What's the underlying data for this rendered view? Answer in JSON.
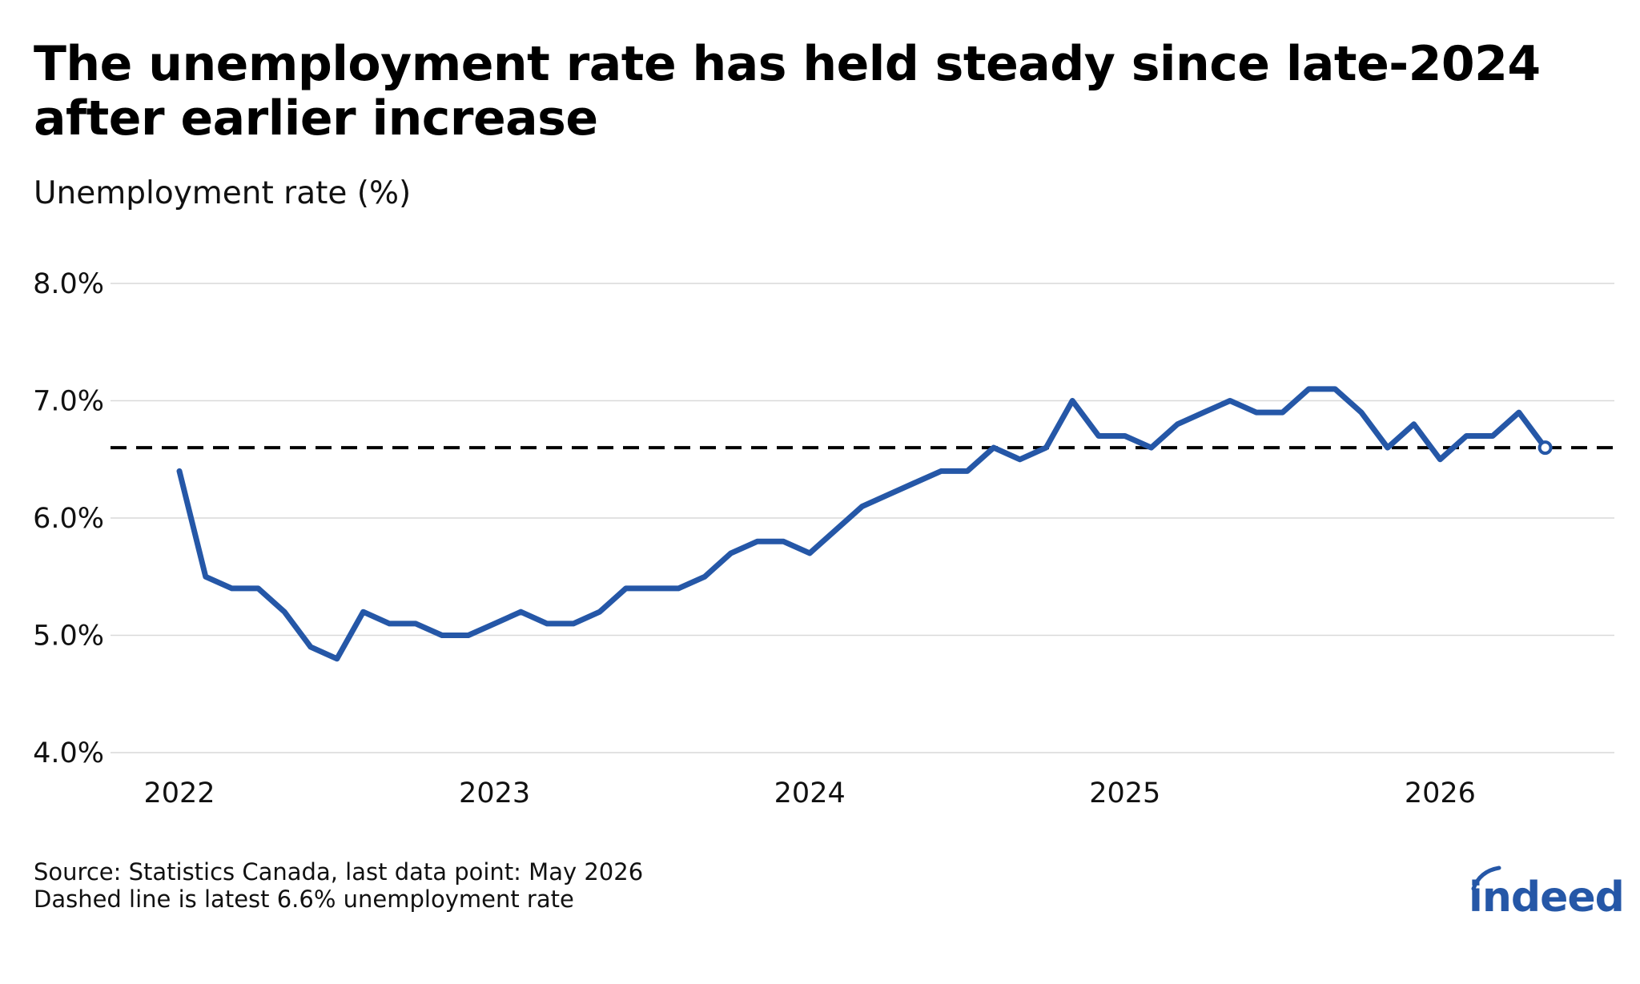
{
  "header": {
    "title": "The unemployment rate has held steady since late-2024 after earlier increase",
    "subtitle": "Unemployment rate (%)"
  },
  "footer": {
    "source": "Source: Statistics Canada, last data point: May 2026",
    "note": "Dashed line is latest 6.6% unemployment rate"
  },
  "logo": {
    "text": "indeed",
    "color": "#2557a7"
  },
  "chart_data": {
    "type": "line",
    "title": "The unemployment rate has held steady since late-2024 after earlier increase",
    "ylabel": "Unemployment rate (%)",
    "xlabel": "",
    "x_start": "2022-01",
    "x_end": "2026-05",
    "x": [
      "2022-01",
      "2022-02",
      "2022-03",
      "2022-04",
      "2022-05",
      "2022-06",
      "2022-07",
      "2022-08",
      "2022-09",
      "2022-10",
      "2022-11",
      "2022-12",
      "2023-01",
      "2023-02",
      "2023-03",
      "2023-04",
      "2023-05",
      "2023-06",
      "2023-07",
      "2023-08",
      "2023-09",
      "2023-10",
      "2023-11",
      "2023-12",
      "2024-01",
      "2024-02",
      "2024-03",
      "2024-04",
      "2024-05",
      "2024-06",
      "2024-07",
      "2024-08",
      "2024-09",
      "2024-10",
      "2024-11",
      "2024-12",
      "2025-01",
      "2025-02",
      "2025-03",
      "2025-04",
      "2025-05",
      "2025-06",
      "2025-07",
      "2025-08",
      "2025-09",
      "2025-10",
      "2025-11",
      "2025-12",
      "2026-01",
      "2026-02",
      "2026-03",
      "2026-04",
      "2026-05"
    ],
    "series": [
      {
        "values": [
          6.4,
          5.5,
          5.4,
          5.4,
          5.2,
          4.9,
          4.8,
          5.2,
          5.1,
          5.1,
          5.0,
          5.0,
          5.1,
          5.2,
          5.1,
          5.1,
          5.2,
          5.4,
          5.4,
          5.4,
          5.5,
          5.7,
          5.8,
          5.8,
          5.7,
          5.9,
          6.1,
          6.2,
          6.3,
          6.4,
          6.4,
          6.6,
          6.5,
          6.6,
          7.0,
          6.7,
          6.7,
          6.6,
          6.8,
          6.9,
          7.0,
          6.9,
          6.9,
          7.1,
          7.1,
          6.9,
          6.6,
          6.8,
          6.5,
          6.7,
          6.7,
          6.9,
          6.6
        ],
        "color": "#2557a7"
      }
    ],
    "reference_line": {
      "value": 6.6,
      "style": "dashed",
      "color": "#000000"
    },
    "ylim": [
      4.0,
      8.0
    ],
    "y_ticks": [
      4.0,
      5.0,
      6.0,
      7.0,
      8.0
    ],
    "y_tick_labels": [
      "4.0%",
      "5.0%",
      "6.0%",
      "7.0%",
      "8.0%"
    ],
    "x_ticks": [
      "2022-01",
      "2023-01",
      "2024-01",
      "2025-01",
      "2026-01"
    ],
    "x_tick_labels": [
      "2022",
      "2023",
      "2024",
      "2025",
      "2026"
    ],
    "grid": "horizontal",
    "last_point_marker": "hollow-circle",
    "legend": "none"
  }
}
